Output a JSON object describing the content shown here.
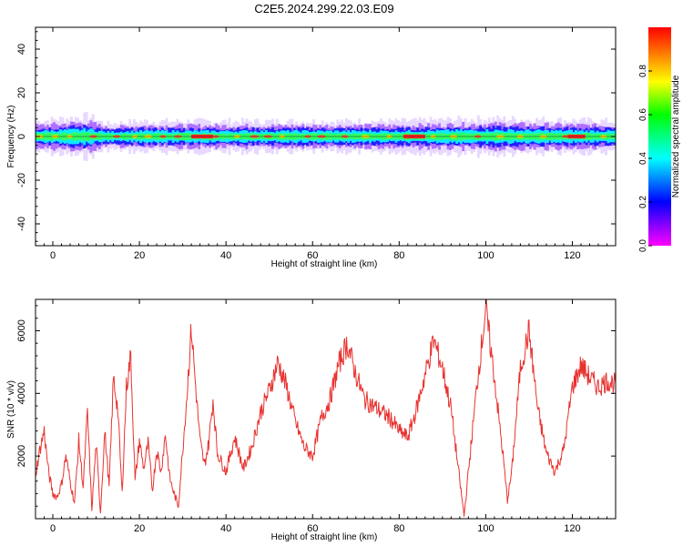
{
  "title": "C2E5.2024.299.22.03.E09",
  "chart_data": [
    {
      "type": "heatmap",
      "xlabel": "Height of straight line (km)",
      "ylabel": "Frequency (Hz)",
      "xlim": [
        -4,
        130
      ],
      "ylim": [
        -50,
        50
      ],
      "x_ticks": [
        0,
        20,
        40,
        60,
        80,
        100,
        120
      ],
      "y_ticks": [
        40,
        20,
        0,
        -20,
        -40
      ],
      "band_center_hz": 0,
      "band_halfwidth_hz": [
        [
          -4,
          3
        ],
        [
          8,
          4
        ],
        [
          12,
          2.5
        ],
        [
          20,
          3
        ],
        [
          40,
          3
        ],
        [
          60,
          3
        ],
        [
          80,
          3
        ],
        [
          100,
          3.5
        ],
        [
          130,
          3
        ]
      ],
      "peak_segments_km": [
        [
          32,
          37
        ],
        [
          81,
          86
        ],
        [
          119,
          123
        ]
      ],
      "colorbar": {
        "label": "Normalized spectral amplitude",
        "range": [
          0,
          1
        ],
        "ticks": [
          "0.0",
          "0.2",
          "0.4",
          "0.6",
          "0.8"
        ],
        "colormap": "rainbow (magenta-blue-cyan-green-yellow-red)"
      }
    },
    {
      "type": "line",
      "xlabel": "Height of straight line (km)",
      "ylabel": "SNR (10 * v/v)",
      "xlim": [
        -4,
        130
      ],
      "ylim": [
        0,
        7000
      ],
      "x_ticks": [
        0,
        20,
        40,
        60,
        80,
        100,
        120
      ],
      "y_ticks": [
        2000,
        4000,
        6000
      ],
      "color": "#e8322f",
      "series": [
        {
          "x": [
            -4,
            -3,
            -2,
            -1,
            0,
            1,
            2,
            3,
            4,
            5,
            6,
            7,
            8,
            9,
            10,
            11,
            12,
            13,
            14,
            15,
            16,
            17,
            18,
            19,
            20,
            21,
            22,
            23,
            24,
            25,
            26,
            27,
            28,
            29,
            30,
            31,
            32,
            33,
            34,
            35,
            36,
            37,
            38,
            40,
            42,
            44,
            46,
            48,
            50,
            52,
            54,
            56,
            58,
            60,
            62,
            64,
            66,
            68,
            70,
            72,
            74,
            76,
            78,
            80,
            82,
            84,
            86,
            88,
            90,
            92,
            94,
            95,
            96,
            98,
            100,
            102,
            104,
            105,
            106,
            108,
            110,
            112,
            114,
            116,
            118,
            120,
            122,
            124,
            126,
            128,
            130
          ],
          "y": [
            1400,
            2200,
            2800,
            1500,
            800,
            700,
            1100,
            2000,
            1200,
            500,
            2500,
            1000,
            3400,
            300,
            2400,
            200,
            2800,
            1000,
            4500,
            3500,
            800,
            4200,
            5200,
            1200,
            2500,
            1600,
            2400,
            900,
            2200,
            1500,
            2700,
            1300,
            800,
            400,
            2200,
            4000,
            6100,
            4200,
            2500,
            1700,
            2400,
            3800,
            2100,
            1500,
            2600,
            1600,
            2300,
            3400,
            4100,
            5000,
            4200,
            3100,
            2300,
            2000,
            3200,
            3800,
            4900,
            5600,
            4600,
            3800,
            3600,
            3400,
            3200,
            2800,
            2600,
            3500,
            4600,
            5700,
            4800,
            3500,
            1200,
            100,
            1500,
            4300,
            6700,
            4500,
            2000,
            600,
            1500,
            4800,
            6000,
            3500,
            2100,
            1500,
            2200,
            4200,
            4900,
            4500,
            4200,
            4400,
            4300
          ]
        }
      ]
    }
  ]
}
